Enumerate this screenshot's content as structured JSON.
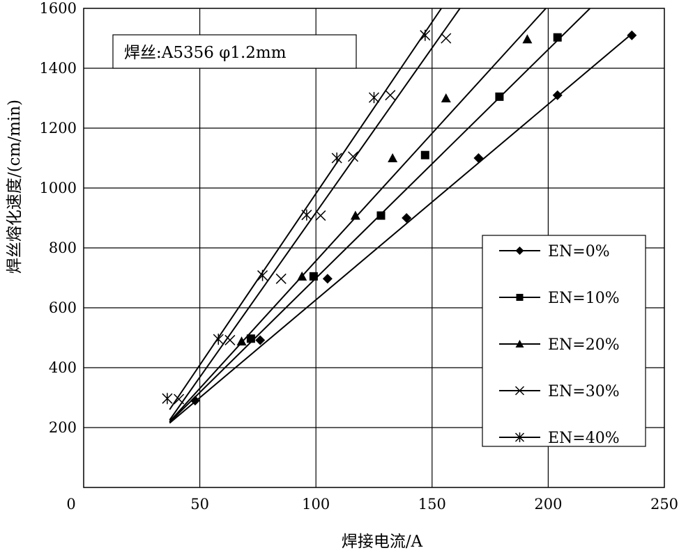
{
  "chart_data": {
    "type": "scatter",
    "title": "",
    "note": "焊丝:A5356 φ1.2mm",
    "xlabel": "焊接电流/A",
    "ylabel": "焊丝熔化速度/(cm/min)",
    "xlim": [
      0,
      250
    ],
    "ylim": [
      0,
      1600
    ],
    "xticks": [
      0,
      50,
      100,
      150,
      200,
      250
    ],
    "yticks": [
      200,
      400,
      600,
      800,
      1000,
      1200,
      1400,
      1600
    ],
    "grid": true,
    "legend_position": "right",
    "series": [
      {
        "name": "EN=0%",
        "marker": "diamond",
        "points": [
          [
            48,
            290
          ],
          [
            76,
            492
          ],
          [
            105,
            697
          ],
          [
            139,
            900
          ],
          [
            170,
            1100
          ],
          [
            204,
            1310
          ],
          [
            236,
            1510
          ]
        ],
        "fit_line": [
          [
            37,
            215
          ],
          [
            236,
            1515
          ]
        ]
      },
      {
        "name": "EN=10%",
        "marker": "square",
        "points": [
          [
            72,
            497
          ],
          [
            99,
            705
          ],
          [
            128,
            908
          ],
          [
            147,
            1110
          ],
          [
            179,
            1305
          ],
          [
            204,
            1503
          ]
        ],
        "fit_line": [
          [
            37,
            218
          ],
          [
            218,
            1600
          ]
        ]
      },
      {
        "name": "EN=20%",
        "marker": "triangle",
        "points": [
          [
            68,
            488
          ],
          [
            94,
            705
          ],
          [
            117,
            908
          ],
          [
            133,
            1100
          ],
          [
            156,
            1300
          ],
          [
            191,
            1497
          ]
        ],
        "fit_line": [
          [
            37,
            220
          ],
          [
            199,
            1600
          ]
        ]
      },
      {
        "name": "EN=30%",
        "marker": "x",
        "points": [
          [
            41,
            295
          ],
          [
            63,
            492
          ],
          [
            85,
            697
          ],
          [
            102,
            908
          ],
          [
            116,
            1105
          ],
          [
            132,
            1310
          ],
          [
            156,
            1500
          ]
        ],
        "fit_line": [
          [
            37,
            225
          ],
          [
            162,
            1600
          ]
        ]
      },
      {
        "name": "EN=40%",
        "marker": "asterisk",
        "points": [
          [
            36,
            297
          ],
          [
            58,
            495
          ],
          [
            77,
            708
          ],
          [
            96,
            910
          ],
          [
            109,
            1100
          ],
          [
            125,
            1302
          ],
          [
            147,
            1510
          ]
        ],
        "fit_line": [
          [
            37,
            260
          ],
          [
            154,
            1600
          ]
        ]
      }
    ]
  }
}
